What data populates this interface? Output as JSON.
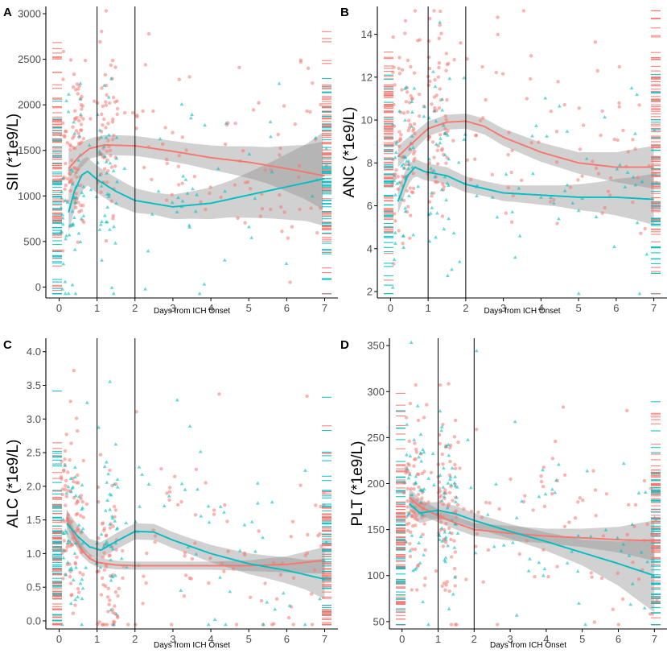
{
  "colors": {
    "group_a": "#f8766d",
    "group_b": "#00bfc4",
    "band": "#8c8c8c",
    "axis": "#000000"
  },
  "chart_data": [
    {
      "panel": "A",
      "type": "scatter",
      "xlabel": "Days from ICH Onset",
      "ylabel": "SII (*1e9/L)",
      "xlim": [
        -0.35,
        7.35
      ],
      "ylim": [
        -120,
        3080
      ],
      "xticks": [
        0,
        1,
        2,
        3,
        4,
        5,
        6,
        7
      ],
      "yticks": [
        0,
        500,
        1000,
        1500,
        2000,
        2500,
        3000
      ],
      "vlines": [
        1,
        2
      ],
      "series": [
        {
          "name": "red",
          "curve": [
            [
              0.25,
              1300
            ],
            [
              0.5,
              1420
            ],
            [
              0.8,
              1520
            ],
            [
              1.2,
              1560
            ],
            [
              2,
              1550
            ],
            [
              3,
              1490
            ],
            [
              4,
              1420
            ],
            [
              5,
              1370
            ],
            [
              6,
              1300
            ],
            [
              7,
              1220
            ]
          ],
          "band": [
            [
              0.25,
              180
            ],
            [
              0.8,
              110
            ],
            [
              1.5,
              110
            ],
            [
              2.5,
              110
            ],
            [
              3.5,
              120
            ],
            [
              4.5,
              150
            ],
            [
              5.5,
              200
            ],
            [
              6.5,
              300
            ],
            [
              7,
              380
            ]
          ]
        },
        {
          "name": "teal",
          "curve": [
            [
              0.25,
              820
            ],
            [
              0.4,
              1050
            ],
            [
              0.6,
              1230
            ],
            [
              0.75,
              1270
            ],
            [
              1,
              1180
            ],
            [
              1.5,
              1050
            ],
            [
              2,
              950
            ],
            [
              3,
              880
            ],
            [
              4,
              920
            ],
            [
              5,
              1010
            ],
            [
              6,
              1100
            ],
            [
              7,
              1190
            ]
          ],
          "band": [
            [
              0.25,
              220
            ],
            [
              0.8,
              150
            ],
            [
              1.5,
              150
            ],
            [
              2.5,
              120
            ],
            [
              3.5,
              150
            ],
            [
              4.5,
              200
            ],
            [
              5.5,
              300
            ],
            [
              6.5,
              420
            ],
            [
              7,
              520
            ]
          ]
        }
      ]
    },
    {
      "panel": "B",
      "type": "scatter",
      "xlabel": "Days from ICH Onset",
      "ylabel": "ANC (*1e9/L)",
      "xlim": [
        -0.35,
        7.35
      ],
      "ylim": [
        1.7,
        15.3
      ],
      "xticks": [
        0,
        1,
        2,
        3,
        4,
        5,
        6,
        7
      ],
      "yticks": [
        2,
        4,
        6,
        8,
        10,
        12,
        14
      ],
      "vlines": [
        1,
        2
      ],
      "series": [
        {
          "name": "red",
          "curve": [
            [
              0.2,
              8.3
            ],
            [
              0.5,
              8.8
            ],
            [
              1,
              9.6
            ],
            [
              1.5,
              9.9
            ],
            [
              2,
              9.95
            ],
            [
              2.5,
              9.7
            ],
            [
              3,
              9.2
            ],
            [
              4,
              8.5
            ],
            [
              5,
              8.0
            ],
            [
              6,
              7.8
            ],
            [
              7,
              7.8
            ]
          ],
          "band": [
            [
              0.2,
              0.5
            ],
            [
              1,
              0.35
            ],
            [
              2,
              0.35
            ],
            [
              3,
              0.4
            ],
            [
              4,
              0.45
            ],
            [
              5,
              0.5
            ],
            [
              6,
              0.7
            ],
            [
              7,
              1.0
            ]
          ]
        },
        {
          "name": "teal",
          "curve": [
            [
              0.2,
              6.2
            ],
            [
              0.45,
              7.4
            ],
            [
              0.65,
              7.8
            ],
            [
              0.9,
              7.6
            ],
            [
              1.2,
              7.5
            ],
            [
              1.5,
              7.4
            ],
            [
              2,
              7.0
            ],
            [
              3,
              6.6
            ],
            [
              4,
              6.5
            ],
            [
              5,
              6.4
            ],
            [
              6,
              6.4
            ],
            [
              7,
              6.3
            ]
          ],
          "band": [
            [
              0.2,
              0.6
            ],
            [
              0.6,
              0.4
            ],
            [
              1.5,
              0.4
            ],
            [
              2.5,
              0.35
            ],
            [
              3.5,
              0.4
            ],
            [
              4.5,
              0.5
            ],
            [
              5.5,
              0.7
            ],
            [
              6.5,
              1.0
            ],
            [
              7,
              1.2
            ]
          ]
        }
      ]
    },
    {
      "panel": "C",
      "type": "scatter",
      "xlabel": "Days from ICH Onset",
      "ylabel": "ALC (*1e9/L)",
      "xlim": [
        -0.35,
        7.35
      ],
      "ylim": [
        -0.12,
        4.2
      ],
      "xticks": [
        0,
        1,
        2,
        3,
        4,
        5,
        6,
        7
      ],
      "yticks": [
        0.0,
        0.5,
        1.0,
        1.5,
        2.0,
        2.5,
        3.0,
        3.5,
        4.0
      ],
      "ytick_labels": [
        "0.0",
        "0.5",
        "1.0",
        "1.5",
        "2.0",
        "2.5",
        "3.0",
        "3.5",
        "4.0"
      ],
      "vlines": [
        1,
        2
      ],
      "series": [
        {
          "name": "red",
          "curve": [
            [
              0.2,
              1.55
            ],
            [
              0.4,
              1.25
            ],
            [
              0.6,
              1.05
            ],
            [
              0.8,
              0.93
            ],
            [
              1,
              0.87
            ],
            [
              1.5,
              0.83
            ],
            [
              2,
              0.82
            ],
            [
              3,
              0.82
            ],
            [
              4,
              0.82
            ],
            [
              5,
              0.82
            ],
            [
              6,
              0.84
            ],
            [
              7,
              0.9
            ]
          ],
          "band": [
            [
              0.2,
              0.12
            ],
            [
              0.8,
              0.07
            ],
            [
              2,
              0.06
            ],
            [
              3,
              0.06
            ],
            [
              4,
              0.06
            ],
            [
              5,
              0.08
            ],
            [
              6,
              0.12
            ],
            [
              7,
              0.2
            ]
          ]
        },
        {
          "name": "teal",
          "curve": [
            [
              0.2,
              1.45
            ],
            [
              0.5,
              1.25
            ],
            [
              0.8,
              1.1
            ],
            [
              1.1,
              1.05
            ],
            [
              1.5,
              1.18
            ],
            [
              2,
              1.33
            ],
            [
              2.5,
              1.32
            ],
            [
              3,
              1.2
            ],
            [
              4,
              1.0
            ],
            [
              5,
              0.85
            ],
            [
              6,
              0.75
            ],
            [
              7,
              0.62
            ]
          ],
          "band": [
            [
              0.2,
              0.2
            ],
            [
              0.8,
              0.12
            ],
            [
              1.5,
              0.12
            ],
            [
              2.5,
              0.12
            ],
            [
              3.5,
              0.12
            ],
            [
              4.5,
              0.14
            ],
            [
              5.5,
              0.17
            ],
            [
              6.5,
              0.22
            ],
            [
              7,
              0.3
            ]
          ]
        }
      ]
    },
    {
      "panel": "D",
      "type": "scatter",
      "xlabel": "Days from ICH Onset",
      "ylabel": "PLT (*1e9/L)",
      "xlim": [
        -0.35,
        7.35
      ],
      "ylim": [
        42,
        358
      ],
      "xticks": [
        0,
        1,
        2,
        3,
        4,
        5,
        6,
        7
      ],
      "yticks": [
        50,
        100,
        150,
        200,
        250,
        300,
        350
      ],
      "vlines": [
        1,
        2
      ],
      "series": [
        {
          "name": "red",
          "curve": [
            [
              0.2,
              185
            ],
            [
              0.5,
              175
            ],
            [
              1,
              165
            ],
            [
              1.5,
              157
            ],
            [
              2,
              150
            ],
            [
              3,
              146
            ],
            [
              4,
              143
            ],
            [
              5,
              141
            ],
            [
              6,
              139
            ],
            [
              7,
              138
            ]
          ],
          "band": [
            [
              0.2,
              10
            ],
            [
              1,
              7
            ],
            [
              2,
              7
            ],
            [
              3,
              8
            ],
            [
              4,
              8
            ],
            [
              5,
              10
            ],
            [
              6,
              14
            ],
            [
              7,
              22
            ]
          ]
        },
        {
          "name": "teal",
          "curve": [
            [
              0.2,
              178
            ],
            [
              0.5,
              168
            ],
            [
              1,
              171
            ],
            [
              1.5,
              167
            ],
            [
              2,
              160
            ],
            [
              3,
              148
            ],
            [
              4,
              137
            ],
            [
              5,
              125
            ],
            [
              6,
              113
            ],
            [
              7,
              100
            ]
          ],
          "band": [
            [
              0.2,
              12
            ],
            [
              1,
              9
            ],
            [
              2,
              8
            ],
            [
              3,
              8
            ],
            [
              4,
              10
            ],
            [
              5,
              14
            ],
            [
              6,
              24
            ],
            [
              7,
              40
            ]
          ]
        }
      ]
    }
  ]
}
